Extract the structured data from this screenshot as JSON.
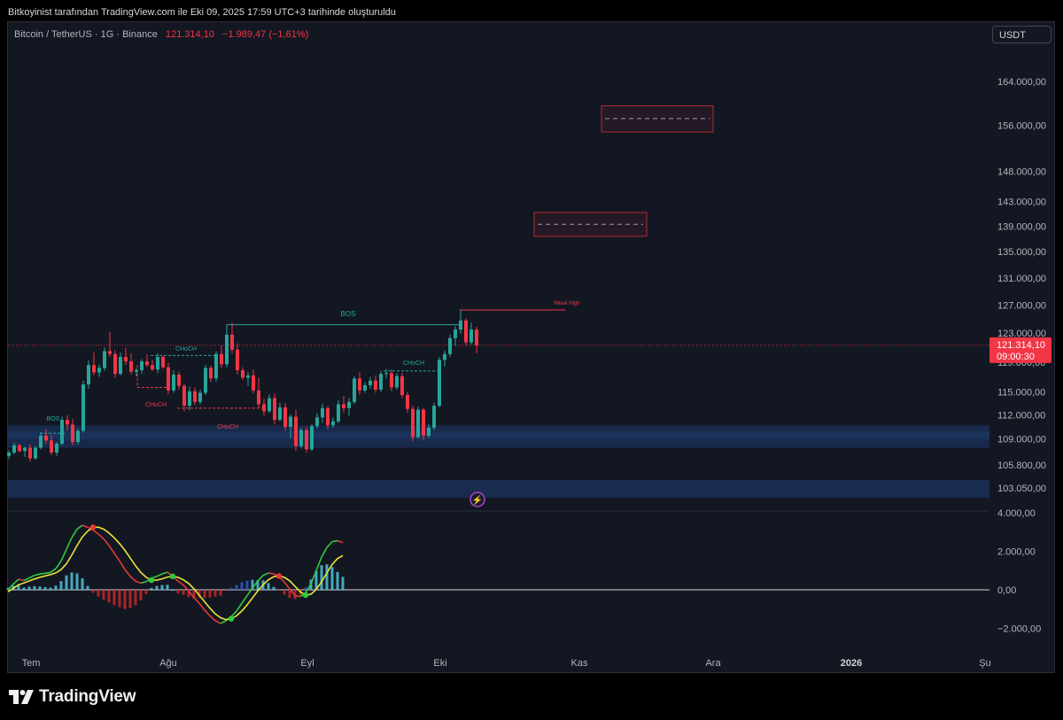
{
  "header": {
    "caption": "Bitkoyinist tarafından TradingView.com ile Eki 09, 2025 17:59 UTC+3 tarihinde oluşturuldu"
  },
  "legend": {
    "symbol": "Bitcoin / TetherUS · 1G · Binance",
    "price": "121.314,10",
    "change": "−1.989,47 (−1,61%)"
  },
  "currency_button": "USDT",
  "price_label": {
    "value": "121.314,10",
    "countdown": "09:00:30"
  },
  "brand": "TradingView",
  "colors": {
    "background": "#131722",
    "up": "#26a69a",
    "down": "#f23645",
    "zone": "#1e3a6e",
    "macd": "#2ecc40",
    "signal": "#e8e337"
  },
  "chart_data": [
    {
      "type": "candlestick",
      "title": "",
      "y_scale": "log",
      "y_ticks": [
        "164.000,00",
        "156.000,00",
        "148.000,00",
        "143.000,00",
        "139.000,00",
        "135.000,00",
        "131.000,00",
        "127.000,00",
        "123.000,00",
        "119.000,00",
        "115.000,00",
        "112.000,00",
        "109.000,00",
        "105.800,00",
        "103.050,00"
      ],
      "x_ticks": [
        "Tem",
        "Ağu",
        "Eyl",
        "Eki",
        "Kas",
        "Ara",
        "2026",
        "Şu"
      ],
      "last_price": 121314.1,
      "candles": [
        [
          106900,
          107600,
          106500,
          107300
        ],
        [
          107300,
          108500,
          107100,
          108200
        ],
        [
          108200,
          108400,
          107300,
          107500
        ],
        [
          107500,
          108000,
          106800,
          107900
        ],
        [
          107900,
          108300,
          106200,
          106600
        ],
        [
          106600,
          108100,
          106400,
          107900
        ],
        [
          107900,
          109800,
          107700,
          109400
        ],
        [
          109400,
          110200,
          108400,
          108800
        ],
        [
          108800,
          109500,
          107000,
          107300
        ],
        [
          107300,
          108600,
          106900,
          108400
        ],
        [
          108400,
          111800,
          108200,
          111400
        ],
        [
          111400,
          112000,
          110100,
          110800
        ],
        [
          110800,
          111500,
          108200,
          108600
        ],
        [
          108600,
          110300,
          108300,
          110000
        ],
        [
          110000,
          116500,
          109800,
          116000
        ],
        [
          116000,
          119200,
          115400,
          118600
        ],
        [
          118600,
          120300,
          117200,
          117600
        ],
        [
          117600,
          118700,
          117000,
          118200
        ],
        [
          118200,
          121000,
          117800,
          120500
        ],
        [
          120500,
          123200,
          119700,
          120100
        ],
        [
          120100,
          120600,
          116900,
          117400
        ],
        [
          117400,
          120300,
          117200,
          119700
        ],
        [
          119700,
          121000,
          118600,
          119100
        ],
        [
          119100,
          120200,
          117300,
          117700
        ],
        [
          117700,
          118200,
          117100,
          117900
        ],
        [
          117900,
          119400,
          117400,
          119100
        ],
        [
          119100,
          120100,
          118300,
          118600
        ],
        [
          118600,
          119300,
          117800,
          118000
        ],
        [
          118000,
          120200,
          117500,
          119700
        ],
        [
          119700,
          119900,
          118100,
          118300
        ],
        [
          118300,
          118900,
          114700,
          115200
        ],
        [
          115200,
          117900,
          114900,
          117300
        ],
        [
          117300,
          117700,
          115300,
          115800
        ],
        [
          115800,
          116100,
          112500,
          113200
        ],
        [
          113200,
          115700,
          112600,
          115100
        ],
        [
          115100,
          115600,
          113300,
          113700
        ],
        [
          113700,
          115300,
          113400,
          114900
        ],
        [
          114900,
          118600,
          114600,
          118200
        ],
        [
          118200,
          118500,
          116300,
          116800
        ],
        [
          116800,
          120500,
          116400,
          120100
        ],
        [
          120100,
          121300,
          118200,
          118700
        ],
        [
          118700,
          123200,
          118300,
          122800
        ],
        [
          122800,
          124500,
          120200,
          120700
        ],
        [
          120700,
          121600,
          117300,
          117900
        ],
        [
          117900,
          118300,
          116600,
          116900
        ],
        [
          116900,
          117700,
          115800,
          117200
        ],
        [
          117200,
          118000,
          114800,
          115200
        ],
        [
          115200,
          116900,
          112900,
          113400
        ],
        [
          113400,
          114100,
          111900,
          112500
        ],
        [
          112500,
          114700,
          112300,
          114200
        ],
        [
          114200,
          114800,
          110800,
          111400
        ],
        [
          111400,
          113600,
          111200,
          113000
        ],
        [
          113000,
          113600,
          110000,
          110500
        ],
        [
          110500,
          112100,
          109100,
          111800
        ],
        [
          111800,
          112700,
          107500,
          108100
        ],
        [
          108100,
          110400,
          107800,
          110100
        ],
        [
          110100,
          110500,
          107300,
          107700
        ],
        [
          107700,
          110900,
          107500,
          110600
        ],
        [
          110600,
          112300,
          110300,
          111700
        ],
        [
          111700,
          113500,
          111000,
          112900
        ],
        [
          112900,
          113200,
          110200,
          110700
        ],
        [
          110700,
          111700,
          110400,
          111200
        ],
        [
          111200,
          113900,
          111000,
          113400
        ],
        [
          113400,
          114500,
          112300,
          112900
        ],
        [
          112900,
          114200,
          111900,
          113700
        ],
        [
          113700,
          117100,
          113400,
          116800
        ],
        [
          116800,
          117600,
          114600,
          115200
        ],
        [
          115200,
          116300,
          114900,
          115900
        ],
        [
          115900,
          117000,
          115400,
          116500
        ],
        [
          116500,
          117200,
          114900,
          115300
        ],
        [
          115300,
          117800,
          115000,
          117400
        ],
        [
          117400,
          118100,
          116800,
          117500
        ],
        [
          117500,
          118000,
          115100,
          115600
        ],
        [
          115600,
          117500,
          115300,
          117100
        ],
        [
          117100,
          117500,
          114200,
          114600
        ],
        [
          114600,
          115000,
          112300,
          112800
        ],
        [
          112800,
          113200,
          108700,
          109200
        ],
        [
          109200,
          113100,
          109000,
          112700
        ],
        [
          112700,
          112900,
          108800,
          109400
        ],
        [
          109400,
          110900,
          109100,
          110400
        ],
        [
          110400,
          113600,
          110100,
          113200
        ],
        [
          113200,
          119700,
          113000,
          119300
        ],
        [
          119300,
          120600,
          118400,
          120100
        ],
        [
          120100,
          122800,
          119700,
          122300
        ],
        [
          122300,
          124000,
          121200,
          123500
        ],
        [
          123500,
          126300,
          122900,
          124800
        ],
        [
          124800,
          125100,
          121200,
          121700
        ],
        [
          121700,
          124500,
          121400,
          123500
        ],
        [
          123500,
          123900,
          120200,
          121300
        ]
      ],
      "annotations": {
        "labels": [
          "BOS",
          "CHoCH",
          "CHoCH",
          "CHoCH",
          "BOS",
          "CHoCH",
          "Weak High"
        ]
      }
    },
    {
      "type": "line",
      "title": "",
      "y_ticks": [
        "4.000,00",
        "2.000,00",
        "0,00",
        "−2.000,00"
      ],
      "ylim": [
        -2800,
        4000
      ],
      "series": [
        {
          "values": [
            0,
            300,
            550,
            480,
            620,
            750,
            820,
            860,
            900,
            1100,
            1500,
            2100,
            2700,
            3150,
            3350,
            3250,
            3100,
            2900,
            2650,
            2300,
            1900,
            1500,
            1050,
            700,
            450,
            350,
            420,
            600,
            700,
            820,
            920,
            700,
            450,
            250,
            -50,
            -400,
            -700,
            -1050,
            -1350,
            -1600,
            -1750,
            -1600,
            -1400,
            -1100,
            -700,
            -300,
            100,
            450,
            750,
            870,
            830,
            700,
            400,
            50,
            -300,
            -350,
            -150,
            300,
            1000,
            1700,
            2200,
            2500,
            2550,
            2450
          ]
        },
        {
          "values": [
            -100,
            80,
            260,
            360,
            460,
            560,
            650,
            720,
            790,
            880,
            1050,
            1350,
            1800,
            2300,
            2750,
            3050,
            3250,
            3250,
            3150,
            2950,
            2700,
            2400,
            2050,
            1650,
            1250,
            900,
            650,
            500,
            500,
            570,
            660,
            700,
            650,
            520,
            330,
            50,
            -280,
            -620,
            -950,
            -1250,
            -1450,
            -1550,
            -1500,
            -1350,
            -1100,
            -780,
            -420,
            -60,
            260,
            520,
            680,
            720,
            650,
            470,
            180,
            -100,
            -270,
            -230,
            20,
            420,
            880,
            1320,
            1620,
            1780
          ]
        }
      ]
    }
  ]
}
